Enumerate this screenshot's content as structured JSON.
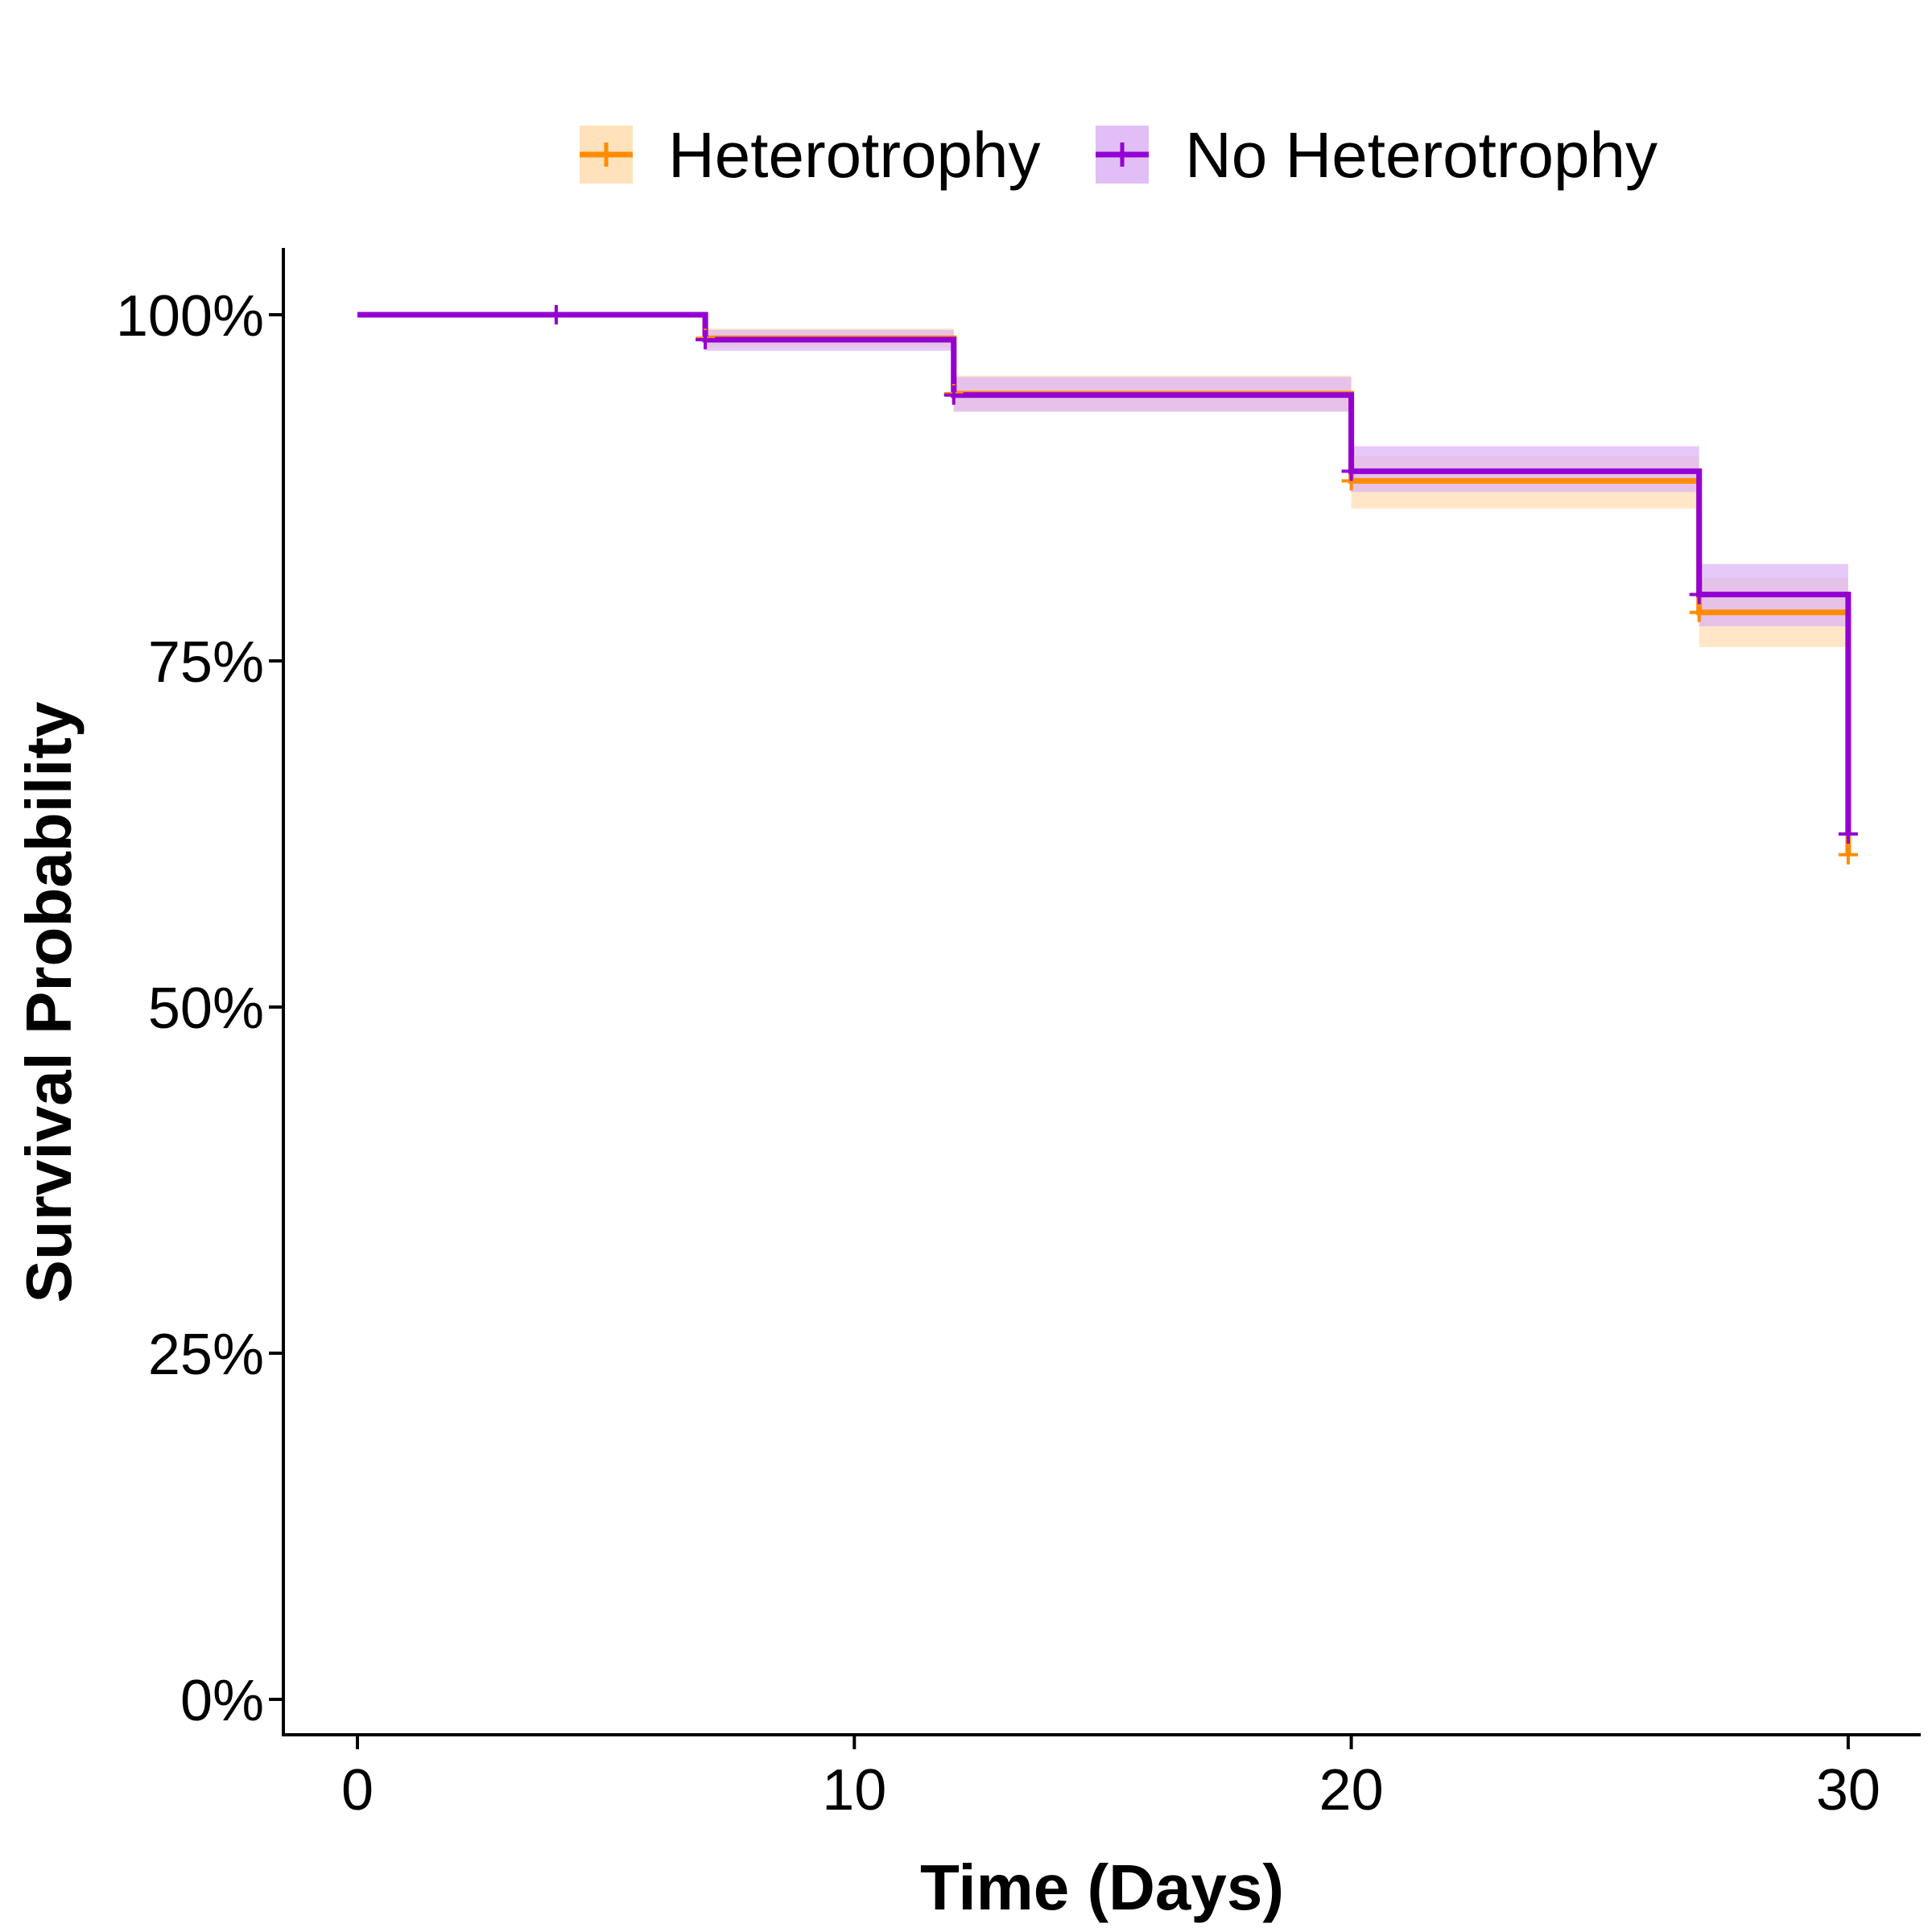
{
  "chart_data": {
    "type": "line",
    "subtype": "kaplan-meier step curve with confidence bands",
    "xlabel": "Time (Days)",
    "ylabel": "Survival Probability",
    "xlim": [
      -1.5,
      31.5
    ],
    "ylim": [
      -2.5,
      105
    ],
    "x_ticks": [
      0,
      10,
      20,
      30
    ],
    "x_tick_labels": [
      "0",
      "10",
      "20",
      "30"
    ],
    "y_ticks": [
      0,
      25,
      50,
      75,
      100
    ],
    "y_tick_labels": [
      "0%",
      "25%",
      "50%",
      "75%",
      "100%"
    ],
    "grid": false,
    "legend_position": "top",
    "series": [
      {
        "name": "Heterotrophy",
        "color": "#FF8C00",
        "band_color": "#FFDDB0",
        "steps": [
          {
            "x": 0,
            "y": 100,
            "lo": 100,
            "hi": 100
          },
          {
            "x": 7,
            "y": 98.3,
            "lo": 97.6,
            "hi": 99.0
          },
          {
            "x": 12,
            "y": 94.3,
            "lo": 93.0,
            "hi": 95.6
          },
          {
            "x": 20,
            "y": 88.0,
            "lo": 86.0,
            "hi": 89.8
          },
          {
            "x": 27,
            "y": 78.5,
            "lo": 76.0,
            "hi": 81.0
          },
          {
            "x": 30,
            "y": 61.0,
            "lo": 61.0,
            "hi": 61.0
          }
        ],
        "censor_marks": [
          {
            "x": 4,
            "y": 100
          },
          {
            "x": 7,
            "y": 98.3
          },
          {
            "x": 12,
            "y": 94.3
          },
          {
            "x": 20,
            "y": 88.0
          },
          {
            "x": 27,
            "y": 78.5
          },
          {
            "x": 30,
            "y": 61.0
          }
        ]
      },
      {
        "name": "No Heterotrophy",
        "color": "#9400D3",
        "band_color": "#DCB4F5",
        "steps": [
          {
            "x": 0,
            "y": 100,
            "lo": 100,
            "hi": 100
          },
          {
            "x": 7,
            "y": 98.2,
            "lo": 97.4,
            "hi": 98.9
          },
          {
            "x": 12,
            "y": 94.2,
            "lo": 93.0,
            "hi": 95.5
          },
          {
            "x": 20,
            "y": 88.7,
            "lo": 87.2,
            "hi": 90.5
          },
          {
            "x": 27,
            "y": 79.8,
            "lo": 77.5,
            "hi": 82.0
          },
          {
            "x": 30,
            "y": 62.5,
            "lo": 62.5,
            "hi": 62.5
          }
        ],
        "censor_marks": [
          {
            "x": 4,
            "y": 100
          },
          {
            "x": 7,
            "y": 98.2
          },
          {
            "x": 12,
            "y": 94.2
          },
          {
            "x": 20,
            "y": 88.7
          },
          {
            "x": 27,
            "y": 79.8
          },
          {
            "x": 30,
            "y": 62.5
          }
        ]
      }
    ]
  }
}
